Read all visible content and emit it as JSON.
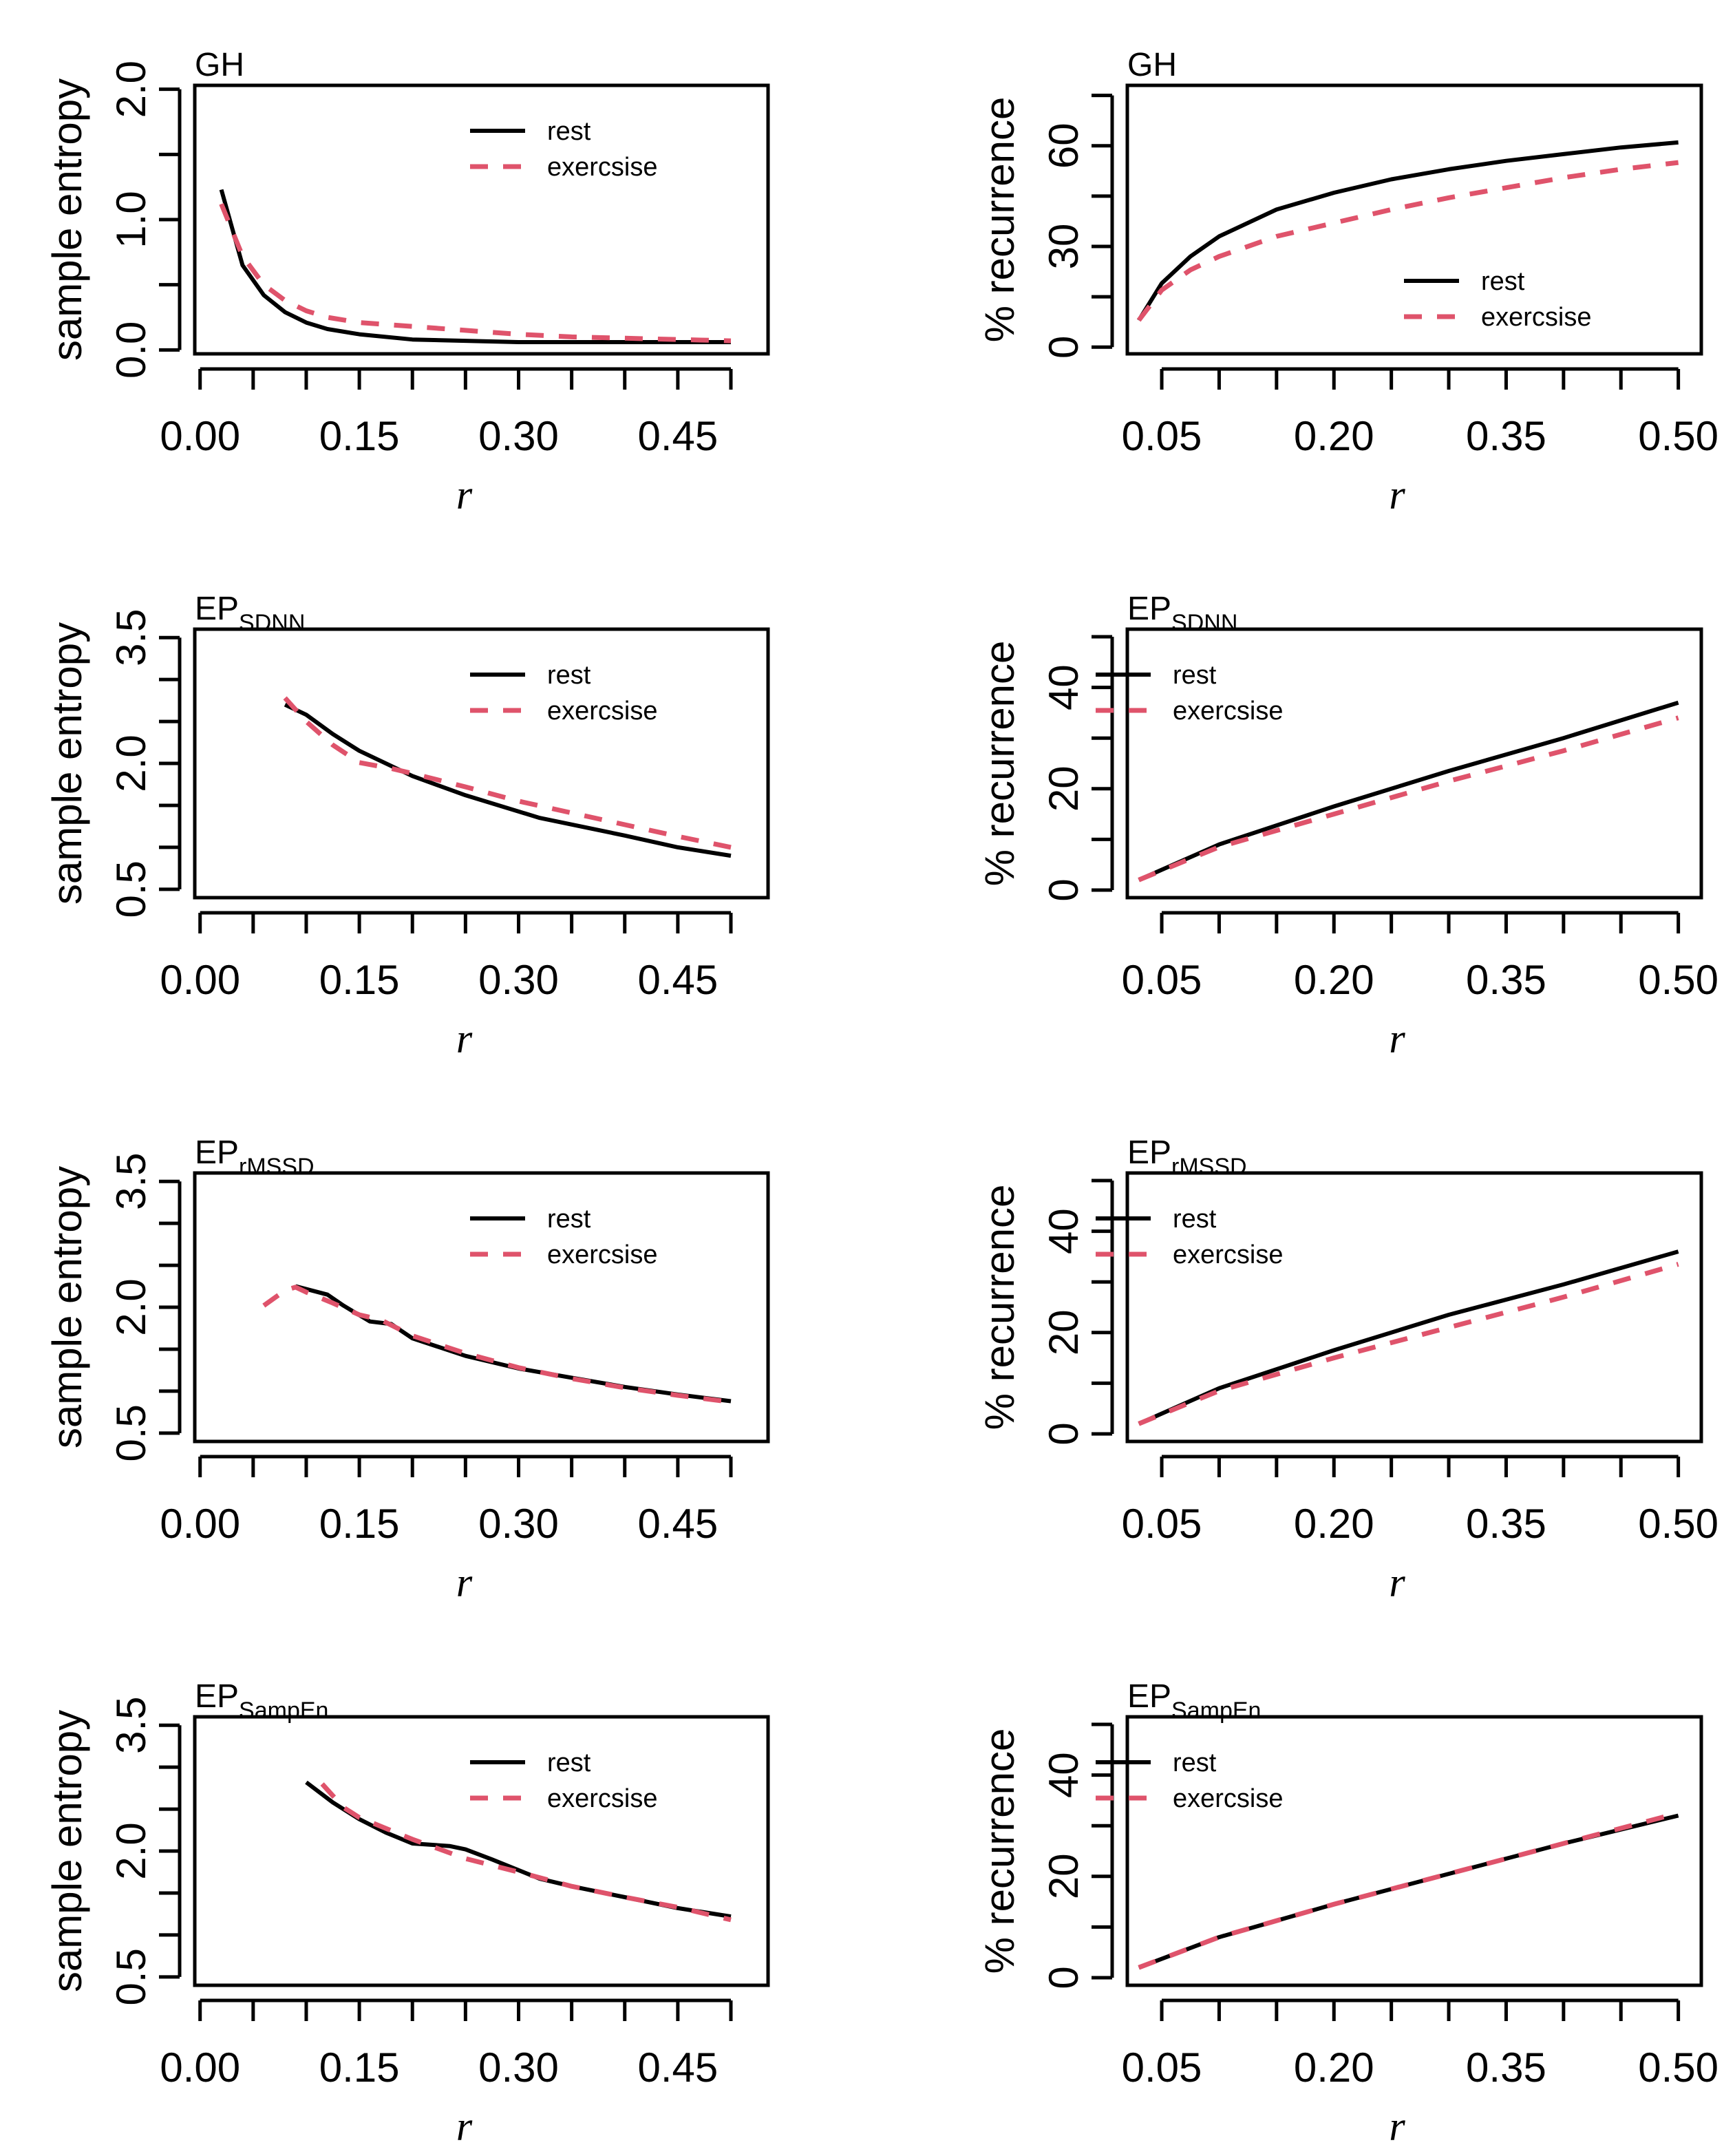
{
  "chart_data": [
    {
      "type": "line",
      "title": "GH",
      "title_sub": "",
      "xlabel": "r",
      "ylabel": "sample entropy",
      "xlim": [
        -0.005,
        0.535
      ],
      "ylim": [
        -0.03,
        2.03
      ],
      "xticks": [
        0.0,
        0.05,
        0.1,
        0.15,
        0.2,
        0.25,
        0.3,
        0.35,
        0.4,
        0.45,
        0.5
      ],
      "xtick_labels": [
        {
          "value": 0.0,
          "label": "0.00"
        },
        {
          "value": 0.15,
          "label": "0.15"
        },
        {
          "value": 0.3,
          "label": "0.30"
        },
        {
          "value": 0.45,
          "label": "0.45"
        }
      ],
      "yticks": [
        0.0,
        0.5,
        1.0,
        1.5,
        2.0
      ],
      "ytick_labels": [
        {
          "value": 0.0,
          "label": "0.0"
        },
        {
          "value": 1.0,
          "label": "1.0"
        },
        {
          "value": 2.0,
          "label": "2.0"
        }
      ],
      "legend": {
        "position": "top-right",
        "entries": [
          {
            "label": "rest",
            "series": 0
          },
          {
            "label": "exercsise",
            "series": 1
          }
        ]
      },
      "series": [
        {
          "name": "rest",
          "color": "#000000",
          "dash": false,
          "x": [
            0.02,
            0.04,
            0.06,
            0.08,
            0.1,
            0.12,
            0.15,
            0.2,
            0.25,
            0.3,
            0.35,
            0.4,
            0.45,
            0.5
          ],
          "y": [
            1.23,
            0.65,
            0.42,
            0.29,
            0.21,
            0.16,
            0.12,
            0.08,
            0.07,
            0.06,
            0.06,
            0.06,
            0.06,
            0.06
          ]
        },
        {
          "name": "exercsise",
          "color": "#df536b",
          "dash": true,
          "x": [
            0.02,
            0.04,
            0.06,
            0.08,
            0.1,
            0.12,
            0.15,
            0.2,
            0.25,
            0.3,
            0.35,
            0.4,
            0.45,
            0.5
          ],
          "y": [
            1.12,
            0.72,
            0.5,
            0.38,
            0.3,
            0.25,
            0.21,
            0.18,
            0.15,
            0.12,
            0.1,
            0.09,
            0.08,
            0.07
          ]
        }
      ]
    },
    {
      "type": "line",
      "title": "GH",
      "title_sub": "",
      "xlabel": "r",
      "ylabel": "% recurrence",
      "xlim": [
        0.02,
        0.52
      ],
      "ylim": [
        -2,
        78
      ],
      "xticks": [
        0.05,
        0.1,
        0.15,
        0.2,
        0.25,
        0.3,
        0.35,
        0.4,
        0.45,
        0.5
      ],
      "xtick_labels": [
        {
          "value": 0.05,
          "label": "0.05"
        },
        {
          "value": 0.2,
          "label": "0.20"
        },
        {
          "value": 0.35,
          "label": "0.35"
        },
        {
          "value": 0.5,
          "label": "0.50"
        }
      ],
      "yticks": [
        0,
        15,
        30,
        45,
        60,
        75
      ],
      "ytick_labels": [
        {
          "value": 0,
          "label": "0"
        },
        {
          "value": 30,
          "label": "30"
        },
        {
          "value": 60,
          "label": "60"
        }
      ],
      "legend": {
        "position": "bottom-right",
        "entries": [
          {
            "label": "rest",
            "series": 0
          },
          {
            "label": "exercsise",
            "series": 1
          }
        ]
      },
      "series": [
        {
          "name": "rest",
          "color": "#000000",
          "dash": false,
          "x": [
            0.03,
            0.05,
            0.075,
            0.1,
            0.15,
            0.2,
            0.25,
            0.3,
            0.35,
            0.4,
            0.45,
            0.5
          ],
          "y": [
            8,
            19,
            27,
            33,
            41,
            46,
            50,
            53,
            55.5,
            57.5,
            59.5,
            61
          ]
        },
        {
          "name": "exercsise",
          "color": "#df536b",
          "dash": true,
          "x": [
            0.03,
            0.05,
            0.075,
            0.1,
            0.15,
            0.2,
            0.25,
            0.3,
            0.35,
            0.4,
            0.45,
            0.5
          ],
          "y": [
            8,
            17,
            23,
            27,
            33,
            37,
            41,
            44.5,
            47.5,
            50.5,
            53,
            55
          ]
        }
      ]
    },
    {
      "type": "line",
      "title": "EP",
      "title_sub": "SDNN",
      "xlabel": "r",
      "ylabel": "sample entropy",
      "xlim": [
        -0.005,
        0.535
      ],
      "ylim": [
        0.4,
        3.6
      ],
      "xticks": [
        0.0,
        0.05,
        0.1,
        0.15,
        0.2,
        0.25,
        0.3,
        0.35,
        0.4,
        0.45,
        0.5
      ],
      "xtick_labels": [
        {
          "value": 0.0,
          "label": "0.00"
        },
        {
          "value": 0.15,
          "label": "0.15"
        },
        {
          "value": 0.3,
          "label": "0.30"
        },
        {
          "value": 0.45,
          "label": "0.45"
        }
      ],
      "yticks": [
        0.5,
        1.0,
        1.5,
        2.0,
        2.5,
        3.0,
        3.5
      ],
      "ytick_labels": [
        {
          "value": 0.5,
          "label": "0.5"
        },
        {
          "value": 2.0,
          "label": "2.0"
        },
        {
          "value": 3.5,
          "label": "3.5"
        }
      ],
      "legend": {
        "position": "top-right",
        "entries": [
          {
            "label": "rest",
            "series": 0
          },
          {
            "label": "exercsise",
            "series": 1
          }
        ]
      },
      "series": [
        {
          "name": "rest",
          "color": "#000000",
          "dash": false,
          "x": [
            0.08,
            0.1,
            0.125,
            0.15,
            0.2,
            0.25,
            0.32,
            0.4,
            0.45,
            0.5
          ],
          "y": [
            2.7,
            2.58,
            2.35,
            2.15,
            1.85,
            1.62,
            1.35,
            1.14,
            1.0,
            0.9
          ]
        },
        {
          "name": "exercsise",
          "color": "#df536b",
          "dash": true,
          "x": [
            0.08,
            0.1,
            0.125,
            0.15,
            0.18,
            0.2,
            0.25,
            0.3,
            0.4,
            0.45,
            0.5
          ],
          "y": [
            2.78,
            2.5,
            2.22,
            2.01,
            1.94,
            1.88,
            1.72,
            1.55,
            1.27,
            1.13,
            1.0
          ]
        }
      ]
    },
    {
      "type": "line",
      "title": "EP",
      "title_sub": "SDNN",
      "xlabel": "r",
      "ylabel": "% recurrence",
      "xlim": [
        0.02,
        0.52
      ],
      "ylim": [
        -1.5,
        51.5
      ],
      "xticks": [
        0.05,
        0.1,
        0.15,
        0.2,
        0.25,
        0.3,
        0.35,
        0.4,
        0.45,
        0.5
      ],
      "xtick_labels": [
        {
          "value": 0.05,
          "label": "0.05"
        },
        {
          "value": 0.2,
          "label": "0.20"
        },
        {
          "value": 0.35,
          "label": "0.35"
        },
        {
          "value": 0.5,
          "label": "0.50"
        }
      ],
      "yticks": [
        0,
        10,
        20,
        30,
        40,
        50
      ],
      "ytick_labels": [
        {
          "value": 0,
          "label": "0"
        },
        {
          "value": 20,
          "label": "20"
        },
        {
          "value": 40,
          "label": "40"
        }
      ],
      "legend": {
        "position": "top-left",
        "entries": [
          {
            "label": "rest",
            "series": 0
          },
          {
            "label": "exercsise",
            "series": 1
          }
        ]
      },
      "series": [
        {
          "name": "rest",
          "color": "#000000",
          "dash": false,
          "x": [
            0.03,
            0.1,
            0.2,
            0.3,
            0.4,
            0.5
          ],
          "y": [
            2,
            9,
            16.5,
            23.5,
            30,
            37
          ]
        },
        {
          "name": "exercsise",
          "color": "#df536b",
          "dash": true,
          "x": [
            0.03,
            0.1,
            0.2,
            0.3,
            0.4,
            0.5
          ],
          "y": [
            2,
            8.5,
            15,
            21.5,
            27.5,
            34
          ]
        }
      ]
    },
    {
      "type": "line",
      "title": "EP",
      "title_sub": "rMSSD",
      "xlabel": "r",
      "ylabel": "sample entropy",
      "xlim": [
        -0.005,
        0.535
      ],
      "ylim": [
        0.4,
        3.6
      ],
      "xticks": [
        0.0,
        0.05,
        0.1,
        0.15,
        0.2,
        0.25,
        0.3,
        0.35,
        0.4,
        0.45,
        0.5
      ],
      "xtick_labels": [
        {
          "value": 0.0,
          "label": "0.00"
        },
        {
          "value": 0.15,
          "label": "0.15"
        },
        {
          "value": 0.3,
          "label": "0.30"
        },
        {
          "value": 0.45,
          "label": "0.45"
        }
      ],
      "yticks": [
        0.5,
        1.0,
        1.5,
        2.0,
        2.5,
        3.0,
        3.5
      ],
      "ytick_labels": [
        {
          "value": 0.5,
          "label": "0.5"
        },
        {
          "value": 2.0,
          "label": "2.0"
        },
        {
          "value": 3.5,
          "label": "3.5"
        }
      ],
      "legend": {
        "position": "top-right",
        "entries": [
          {
            "label": "rest",
            "series": 0
          },
          {
            "label": "exercsise",
            "series": 1
          }
        ]
      },
      "series": [
        {
          "name": "rest",
          "color": "#000000",
          "dash": false,
          "x": [
            0.09,
            0.12,
            0.135,
            0.16,
            0.18,
            0.2,
            0.25,
            0.3,
            0.35,
            0.4,
            0.45,
            0.5
          ],
          "y": [
            2.25,
            2.15,
            2.02,
            1.83,
            1.8,
            1.63,
            1.42,
            1.27,
            1.16,
            1.05,
            0.96,
            0.88
          ]
        },
        {
          "name": "exercsise",
          "color": "#df536b",
          "dash": true,
          "x": [
            0.06,
            0.08,
            0.09,
            0.1,
            0.125,
            0.15,
            0.17,
            0.2,
            0.25,
            0.3,
            0.35,
            0.4,
            0.45,
            0.5
          ],
          "y": [
            2.02,
            2.2,
            2.24,
            2.18,
            2.05,
            1.91,
            1.85,
            1.66,
            1.45,
            1.28,
            1.15,
            1.04,
            0.95,
            0.87
          ]
        }
      ]
    },
    {
      "type": "line",
      "title": "EP",
      "title_sub": "rMSSD",
      "xlabel": "r",
      "ylabel": "% recurrence",
      "xlim": [
        0.02,
        0.52
      ],
      "ylim": [
        -1.5,
        51.5
      ],
      "xticks": [
        0.05,
        0.1,
        0.15,
        0.2,
        0.25,
        0.3,
        0.35,
        0.4,
        0.45,
        0.5
      ],
      "xtick_labels": [
        {
          "value": 0.05,
          "label": "0.05"
        },
        {
          "value": 0.2,
          "label": "0.20"
        },
        {
          "value": 0.35,
          "label": "0.35"
        },
        {
          "value": 0.5,
          "label": "0.50"
        }
      ],
      "yticks": [
        0,
        10,
        20,
        30,
        40,
        50
      ],
      "ytick_labels": [
        {
          "value": 0,
          "label": "0"
        },
        {
          "value": 20,
          "label": "20"
        },
        {
          "value": 40,
          "label": "40"
        }
      ],
      "legend": {
        "position": "top-left",
        "entries": [
          {
            "label": "rest",
            "series": 0
          },
          {
            "label": "exercsise",
            "series": 1
          }
        ]
      },
      "series": [
        {
          "name": "rest",
          "color": "#000000",
          "dash": false,
          "x": [
            0.03,
            0.1,
            0.2,
            0.3,
            0.4,
            0.5
          ],
          "y": [
            2,
            9,
            16.5,
            23.5,
            29.5,
            36
          ]
        },
        {
          "name": "exercsise",
          "color": "#df536b",
          "dash": true,
          "x": [
            0.03,
            0.1,
            0.2,
            0.3,
            0.4,
            0.5
          ],
          "y": [
            2,
            8.5,
            15,
            21,
            27,
            33.5
          ]
        }
      ]
    },
    {
      "type": "line",
      "title": "EP",
      "title_sub": "SampEn",
      "xlabel": "r",
      "ylabel": "sample entropy",
      "xlim": [
        -0.005,
        0.535
      ],
      "ylim": [
        0.4,
        3.6
      ],
      "xticks": [
        0.0,
        0.05,
        0.1,
        0.15,
        0.2,
        0.25,
        0.3,
        0.35,
        0.4,
        0.45,
        0.5
      ],
      "xtick_labels": [
        {
          "value": 0.0,
          "label": "0.00"
        },
        {
          "value": 0.15,
          "label": "0.15"
        },
        {
          "value": 0.3,
          "label": "0.30"
        },
        {
          "value": 0.45,
          "label": "0.45"
        }
      ],
      "yticks": [
        0.5,
        1.0,
        1.5,
        2.0,
        2.5,
        3.0,
        3.5
      ],
      "ytick_labels": [
        {
          "value": 0.5,
          "label": "0.5"
        },
        {
          "value": 2.0,
          "label": "2.0"
        },
        {
          "value": 3.5,
          "label": "3.5"
        }
      ],
      "legend": {
        "position": "top-right",
        "entries": [
          {
            "label": "rest",
            "series": 0
          },
          {
            "label": "exercsise",
            "series": 1
          }
        ]
      },
      "series": [
        {
          "name": "rest",
          "color": "#000000",
          "dash": false,
          "x": [
            0.1,
            0.125,
            0.15,
            0.175,
            0.2,
            0.235,
            0.25,
            0.275,
            0.32,
            0.35,
            0.4,
            0.45,
            0.5
          ],
          "y": [
            2.82,
            2.58,
            2.38,
            2.22,
            2.09,
            2.06,
            2.02,
            1.9,
            1.67,
            1.58,
            1.45,
            1.32,
            1.22
          ]
        },
        {
          "name": "exercsise",
          "color": "#df536b",
          "dash": true,
          "x": [
            0.115,
            0.135,
            0.15,
            0.2,
            0.25,
            0.3,
            0.35,
            0.4,
            0.45,
            0.5
          ],
          "y": [
            2.8,
            2.52,
            2.4,
            2.14,
            1.91,
            1.75,
            1.58,
            1.45,
            1.33,
            1.18
          ]
        }
      ]
    },
    {
      "type": "line",
      "title": "EP",
      "title_sub": "SampEn",
      "xlabel": "r",
      "ylabel": "% recurrence",
      "xlim": [
        0.02,
        0.52
      ],
      "ylim": [
        -1.5,
        51.5
      ],
      "xticks": [
        0.05,
        0.1,
        0.15,
        0.2,
        0.25,
        0.3,
        0.35,
        0.4,
        0.45,
        0.5
      ],
      "xtick_labels": [
        {
          "value": 0.05,
          "label": "0.05"
        },
        {
          "value": 0.2,
          "label": "0.20"
        },
        {
          "value": 0.35,
          "label": "0.35"
        },
        {
          "value": 0.5,
          "label": "0.50"
        }
      ],
      "yticks": [
        0,
        10,
        20,
        30,
        40,
        50
      ],
      "ytick_labels": [
        {
          "value": 0,
          "label": "0"
        },
        {
          "value": 20,
          "label": "20"
        },
        {
          "value": 40,
          "label": "40"
        }
      ],
      "legend": {
        "position": "top-left",
        "entries": [
          {
            "label": "rest",
            "series": 0
          },
          {
            "label": "exercsise",
            "series": 1
          }
        ]
      },
      "series": [
        {
          "name": "rest",
          "color": "#000000",
          "dash": false,
          "x": [
            0.03,
            0.1,
            0.2,
            0.3,
            0.4,
            0.5
          ],
          "y": [
            2,
            8,
            14.5,
            20.5,
            26.5,
            32
          ]
        },
        {
          "name": "exercsise",
          "color": "#df536b",
          "dash": true,
          "x": [
            0.03,
            0.1,
            0.2,
            0.3,
            0.4,
            0.5
          ],
          "y": [
            2,
            8,
            14.5,
            20.5,
            26.5,
            32.5
          ]
        }
      ]
    }
  ]
}
